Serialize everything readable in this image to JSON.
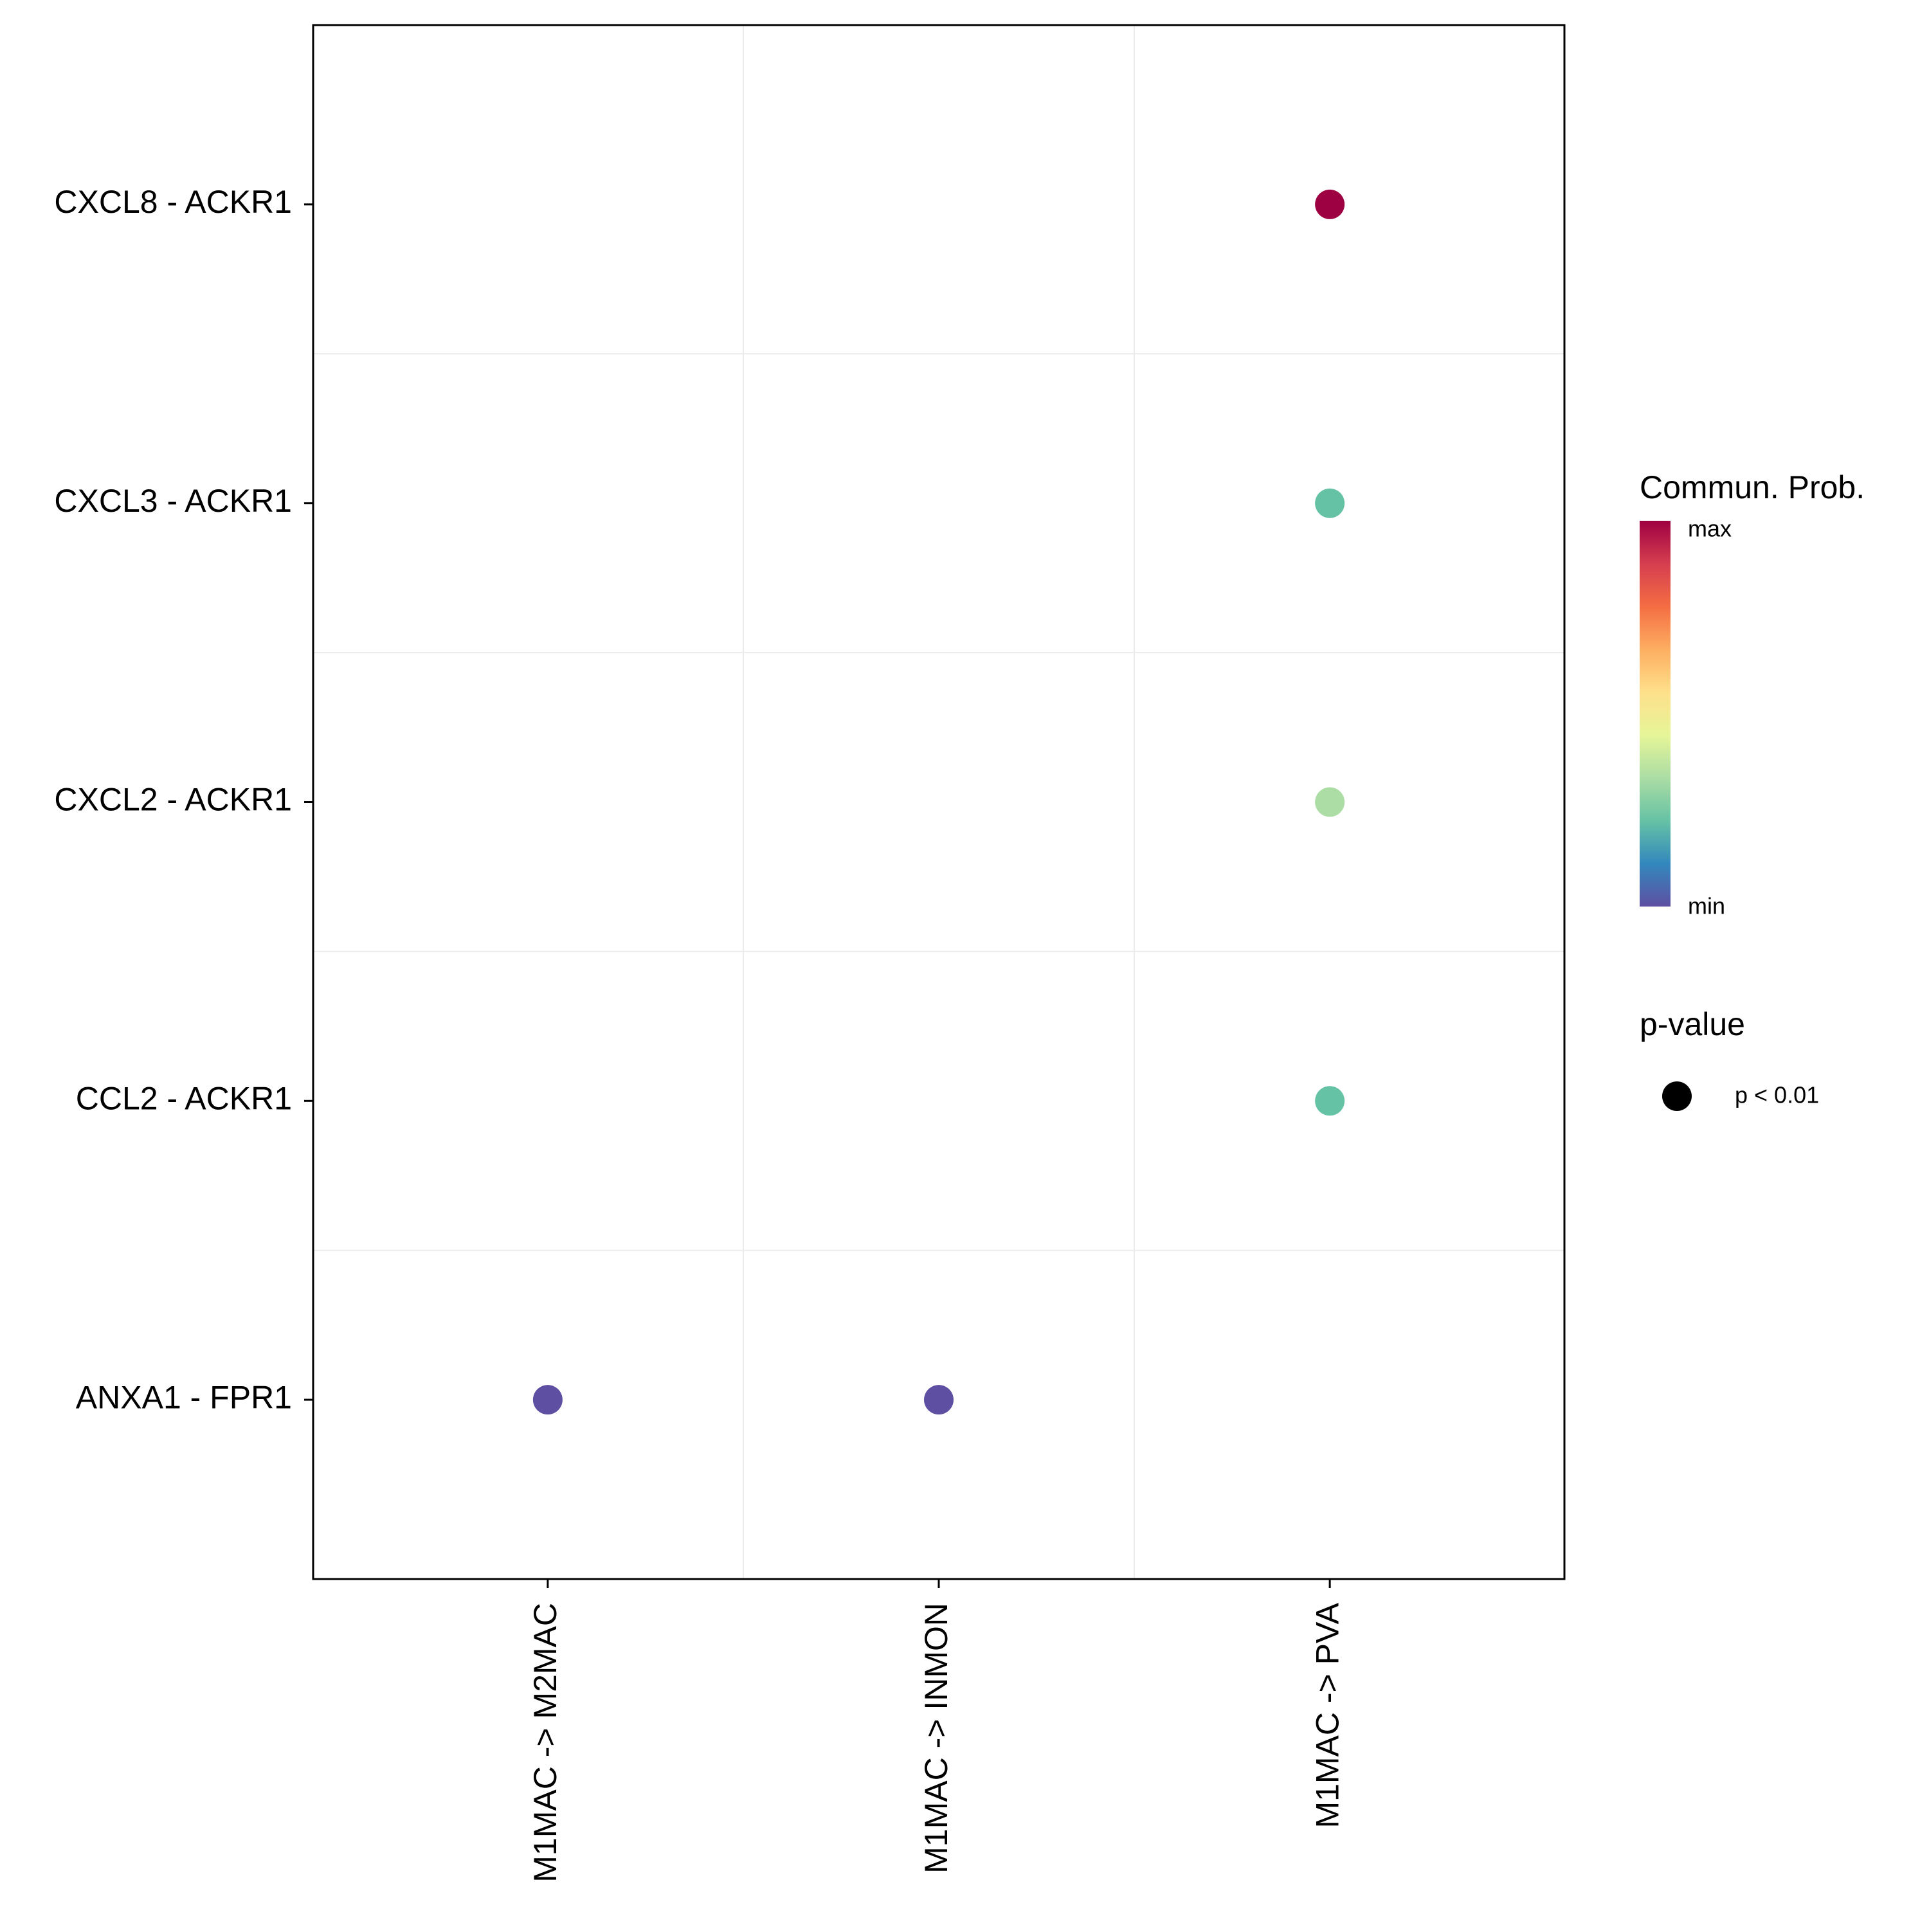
{
  "chart_data": {
    "type": "scatter",
    "subtype": "dot-plot",
    "title": "",
    "xlabel": "",
    "ylabel": "",
    "x_categories": [
      "M1MAC -> M2MAC",
      "M1MAC -> INMON",
      "M1MAC -> PVA"
    ],
    "y_categories": [
      "CXCL8 - ACKR1",
      "CXCL3 - ACKR1",
      "CXCL2 - ACKR1",
      "CCL2 - ACKR1",
      "ANXA1 - FPR1"
    ],
    "points": [
      {
        "x": "M1MAC -> PVA",
        "y": "CXCL8 - ACKR1",
        "prob": 1.0,
        "color": "#9E0142"
      },
      {
        "x": "M1MAC -> PVA",
        "y": "CXCL3 - ACKR1",
        "prob": 0.3,
        "color": "#66C2A5"
      },
      {
        "x": "M1MAC -> PVA",
        "y": "CXCL2 - ACKR1",
        "prob": 0.4,
        "color": "#ABDDA4"
      },
      {
        "x": "M1MAC -> PVA",
        "y": "CCL2 - ACKR1",
        "prob": 0.3,
        "color": "#66C2A5"
      },
      {
        "x": "M1MAC -> M2MAC",
        "y": "ANXA1 - FPR1",
        "prob": 0.0,
        "color": "#5E4FA2"
      },
      {
        "x": "M1MAC -> INMON",
        "y": "ANXA1 - FPR1",
        "prob": 0.0,
        "color": "#5E4FA2"
      }
    ],
    "legend": {
      "color": {
        "title": "Commun. Prob.",
        "max_label": "max",
        "min_label": "min",
        "colors": [
          "#9E0142",
          "#D53E4F",
          "#F46D43",
          "#FDAE61",
          "#FEE08B",
          "#E6F598",
          "#ABDDA4",
          "#66C2A5",
          "#3288BD",
          "#5E4FA2"
        ]
      },
      "size": {
        "title": "p-value",
        "entries": [
          "p < 0.01"
        ]
      },
      "position": "right"
    },
    "grid": true
  }
}
